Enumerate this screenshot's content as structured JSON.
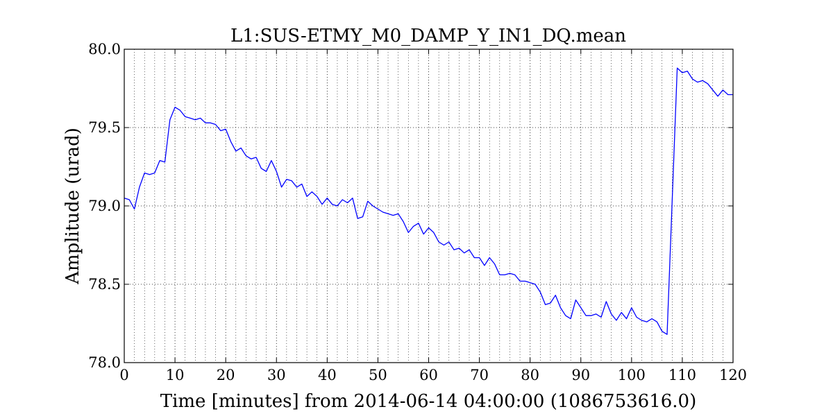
{
  "chart_data": {
    "type": "line",
    "title": "L1:SUS-ETMY_M0_DAMP_Y_IN1_DQ.mean",
    "xlabel": "Time [minutes] from 2014-06-14 04:00:00 (1086753616.0)",
    "ylabel": "Amplitude (urad)",
    "xlim": [
      0,
      120
    ],
    "ylim": [
      78.0,
      80.0
    ],
    "xticks": [
      "0",
      "10",
      "20",
      "30",
      "40",
      "50",
      "60",
      "70",
      "80",
      "90",
      "100",
      "110",
      "120"
    ],
    "yticks": [
      "78.0",
      "78.5",
      "79.0",
      "79.5",
      "80.0"
    ],
    "grid": true,
    "line_color": "#0000ff",
    "series": [
      {
        "x": [
          0,
          1,
          2,
          3,
          4,
          5,
          6,
          7,
          8,
          9,
          10,
          11,
          12,
          13,
          14,
          15,
          16,
          17,
          18,
          19,
          20,
          21,
          22,
          23,
          24,
          25,
          26,
          27,
          28,
          29,
          30,
          31,
          32,
          33,
          34,
          35,
          36,
          37,
          38,
          39,
          40,
          41,
          42,
          43,
          44,
          45,
          46,
          47,
          48,
          49,
          50,
          51,
          52,
          53,
          54,
          55,
          56,
          57,
          58,
          59,
          60,
          61,
          62,
          63,
          64,
          65,
          66,
          67,
          68,
          69,
          70,
          71,
          72,
          73,
          74,
          75,
          76,
          77,
          78,
          79,
          80,
          81,
          82,
          83,
          84,
          85,
          86,
          87,
          88,
          89,
          90,
          91,
          92,
          93,
          94,
          95,
          96,
          97,
          98,
          99,
          100,
          101,
          102,
          103,
          104,
          105,
          106,
          107,
          108,
          109,
          110,
          111,
          112,
          113,
          114,
          115,
          116,
          117,
          118,
          119,
          120
        ],
        "values": [
          79.05,
          79.04,
          78.98,
          79.12,
          79.21,
          79.2,
          79.21,
          79.29,
          79.28,
          79.55,
          79.63,
          79.61,
          79.57,
          79.56,
          79.55,
          79.56,
          79.53,
          79.53,
          79.52,
          79.48,
          79.49,
          79.41,
          79.35,
          79.37,
          79.32,
          79.3,
          79.31,
          79.24,
          79.22,
          79.29,
          79.22,
          79.12,
          79.17,
          79.16,
          79.12,
          79.14,
          79.06,
          79.09,
          79.06,
          79.01,
          79.05,
          79.01,
          79.0,
          79.04,
          79.02,
          79.05,
          78.92,
          78.93,
          79.03,
          79.0,
          78.98,
          78.96,
          78.95,
          78.94,
          78.95,
          78.9,
          78.83,
          78.87,
          78.89,
          78.82,
          78.86,
          78.83,
          78.77,
          78.75,
          78.77,
          78.72,
          78.73,
          78.7,
          78.72,
          78.67,
          78.67,
          78.62,
          78.67,
          78.63,
          78.56,
          78.56,
          78.57,
          78.56,
          78.52,
          78.52,
          78.51,
          78.5,
          78.45,
          78.37,
          78.38,
          78.43,
          78.35,
          78.3,
          78.28,
          78.4,
          78.35,
          78.3,
          78.3,
          78.31,
          78.29,
          78.39,
          78.31,
          78.27,
          78.32,
          78.28,
          78.35,
          78.29,
          78.27,
          78.26,
          78.28,
          78.26,
          78.2,
          78.18,
          79.03,
          79.88,
          79.85,
          79.86,
          79.81,
          79.79,
          79.8,
          79.78,
          79.74,
          79.7,
          79.74,
          79.71,
          79.71
        ]
      }
    ]
  }
}
